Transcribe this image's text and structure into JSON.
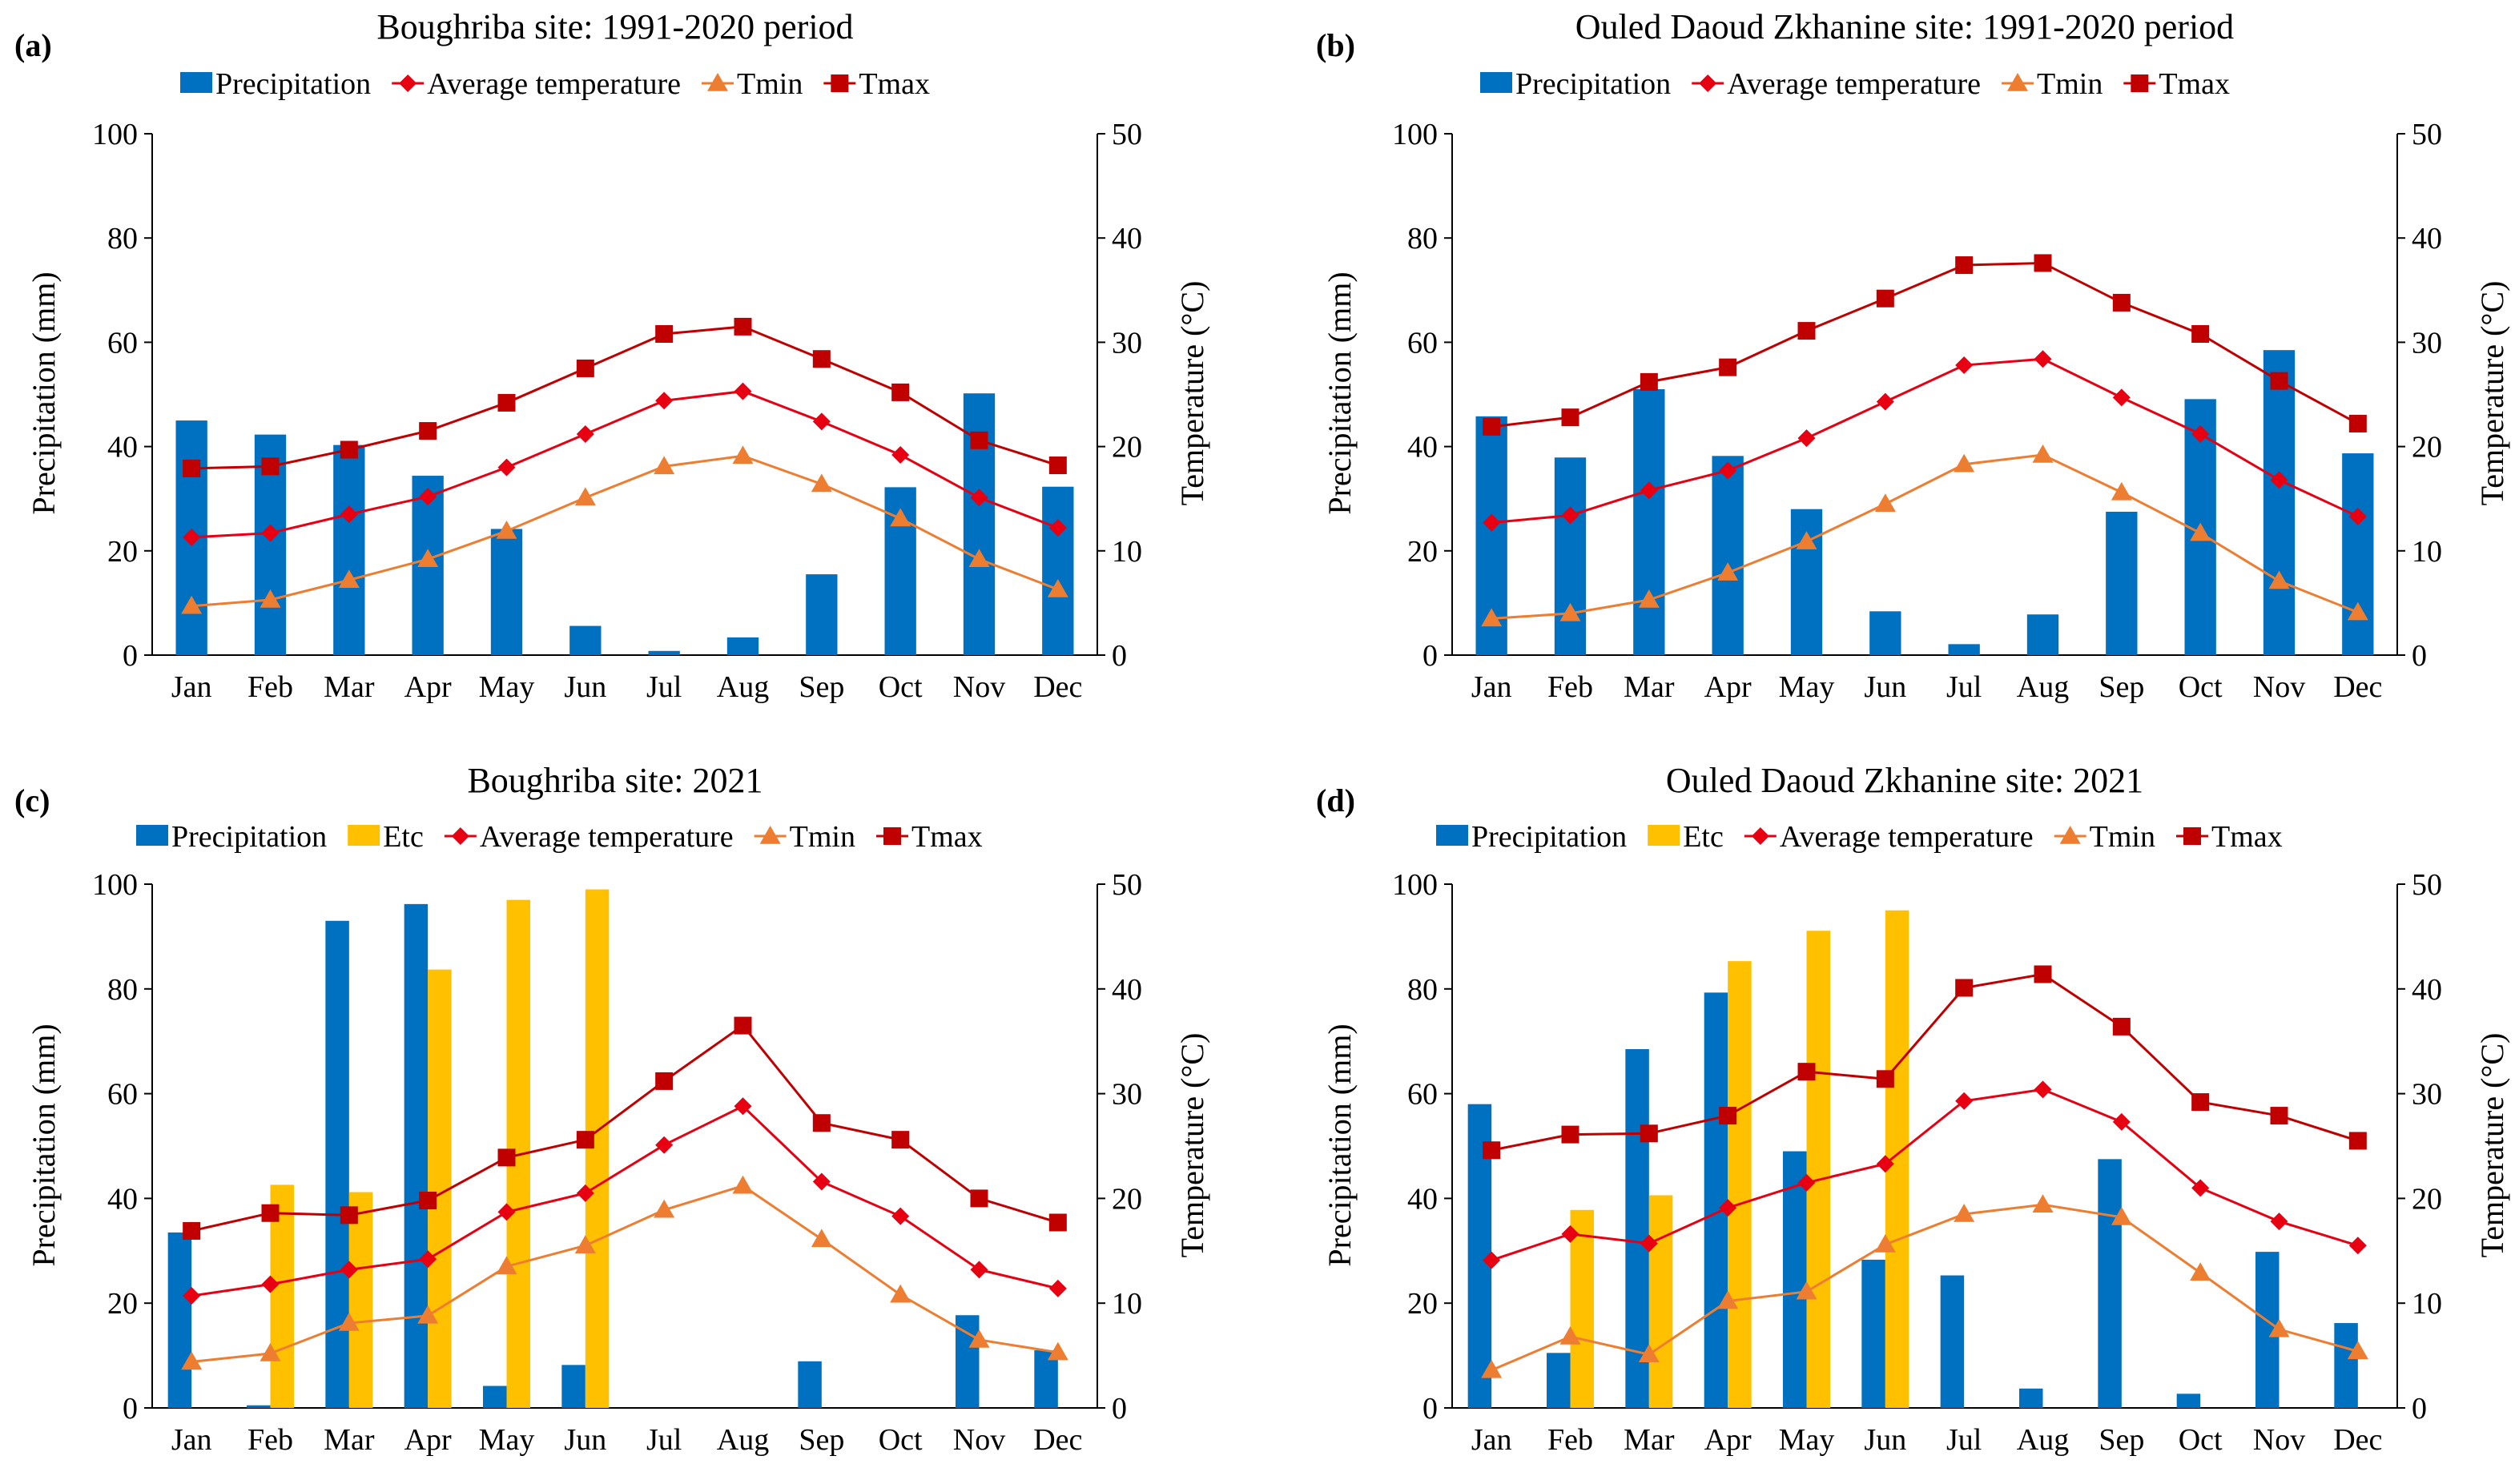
{
  "colors": {
    "precipitation": "#0070C0",
    "etc": "#FFC000",
    "average": "#E60012",
    "tmin": "#ED7D31",
    "tmax": "#C00000",
    "axis": "#000000"
  },
  "chart_data": [
    {
      "panel": "(a)",
      "title": "Boughriba site: 1991-2020 period",
      "type": "bar",
      "categories": [
        "Jan",
        "Feb",
        "Mar",
        "Apr",
        "May",
        "Jun",
        "Jul",
        "Aug",
        "Sep",
        "Oct",
        "Nov",
        "Dec"
      ],
      "ylabel": "Precipitation (mm)",
      "y2label": "Temperature (°C)",
      "ylim": [
        0,
        100
      ],
      "y2lim": [
        0,
        50
      ],
      "yticks": [
        "0",
        "20",
        "40",
        "60",
        "80",
        "100"
      ],
      "y2ticks": [
        "0",
        "10",
        "20",
        "30",
        "40",
        "50"
      ],
      "legend": [
        "Precipitation",
        "Average temperature",
        "Tmin",
        "Tmax"
      ],
      "series": [
        {
          "name": "Precipitation",
          "kind": "bar",
          "axis": "left",
          "values": [
            45,
            42.3,
            40.3,
            34.4,
            24.2,
            5.6,
            0.8,
            3.4,
            15.5,
            32.2,
            50.2,
            32.3
          ]
        },
        {
          "name": "Average temperature",
          "kind": "line",
          "marker": "diamond",
          "axis": "right",
          "values": [
            11.3,
            11.7,
            13.5,
            15.2,
            18.0,
            21.2,
            24.4,
            25.3,
            22.4,
            19.2,
            15.1,
            12.2
          ]
        },
        {
          "name": "Tmin",
          "kind": "line",
          "marker": "triangle",
          "axis": "right",
          "values": [
            4.7,
            5.3,
            7.2,
            9.2,
            11.9,
            15.1,
            18.1,
            19.1,
            16.4,
            13.1,
            9.2,
            6.3
          ]
        },
        {
          "name": "Tmax",
          "kind": "line",
          "marker": "square",
          "axis": "right",
          "values": [
            17.9,
            18.1,
            19.7,
            21.5,
            24.2,
            27.5,
            30.8,
            31.5,
            28.4,
            25.2,
            20.6,
            18.2
          ]
        }
      ]
    },
    {
      "panel": "(b)",
      "title": "Ouled Daoud Zkhanine site: 1991-2020 period",
      "type": "bar",
      "categories": [
        "Jan",
        "Feb",
        "Mar",
        "Apr",
        "May",
        "Jun",
        "Jul",
        "Aug",
        "Sep",
        "Oct",
        "Nov",
        "Dec"
      ],
      "ylabel": "Precipitation (mm)",
      "y2label": "Temperature (°C)",
      "ylim": [
        0,
        100
      ],
      "y2lim": [
        0,
        50
      ],
      "yticks": [
        "0",
        "20",
        "40",
        "60",
        "80",
        "100"
      ],
      "y2ticks": [
        "0",
        "10",
        "20",
        "30",
        "40",
        "50"
      ],
      "legend": [
        "Precipitation",
        "Average temperature",
        "Tmin",
        "Tmax"
      ],
      "series": [
        {
          "name": "Precipitation",
          "kind": "bar",
          "axis": "left",
          "values": [
            45.8,
            37.9,
            51,
            38.2,
            28,
            8.4,
            2.1,
            7.8,
            27.5,
            49.1,
            58.5,
            38.7
          ]
        },
        {
          "name": "Average temperature",
          "kind": "line",
          "marker": "diamond",
          "axis": "right",
          "values": [
            12.7,
            13.4,
            15.8,
            17.7,
            20.8,
            24.3,
            27.8,
            28.4,
            24.7,
            21.2,
            16.8,
            13.3
          ]
        },
        {
          "name": "Tmin",
          "kind": "line",
          "marker": "triangle",
          "axis": "right",
          "values": [
            3.5,
            4.0,
            5.3,
            7.9,
            10.9,
            14.5,
            18.3,
            19.2,
            15.6,
            11.7,
            7.1,
            4.1
          ]
        },
        {
          "name": "Tmax",
          "kind": "line",
          "marker": "square",
          "axis": "right",
          "values": [
            21.9,
            22.8,
            26.2,
            27.6,
            31.1,
            34.2,
            37.4,
            37.6,
            33.8,
            30.8,
            26.3,
            22.2
          ]
        }
      ]
    },
    {
      "panel": "(c)",
      "title": "Boughriba site: 2021",
      "type": "bar",
      "categories": [
        "Jan",
        "Feb",
        "Mar",
        "Apr",
        "May",
        "Jun",
        "Jul",
        "Aug",
        "Sep",
        "Oct",
        "Nov",
        "Dec"
      ],
      "ylabel": "Precipitation (mm)",
      "y2label": "Temperature (°C)",
      "ylim": [
        0,
        100
      ],
      "y2lim": [
        0,
        50
      ],
      "yticks": [
        "0",
        "20",
        "40",
        "60",
        "80",
        "100"
      ],
      "y2ticks": [
        "0",
        "10",
        "20",
        "30",
        "40",
        "50"
      ],
      "legend": [
        "Precipitation",
        "Etc",
        "Average temperature",
        "Tmin",
        "Tmax"
      ],
      "series": [
        {
          "name": "Precipitation",
          "kind": "bar",
          "axis": "left",
          "values": [
            33.5,
            0.5,
            93,
            96.2,
            4.2,
            8.2,
            0,
            0,
            8.9,
            0,
            17.7,
            11
          ]
        },
        {
          "name": "Etc",
          "kind": "bar",
          "axis": "left",
          "values": [
            0,
            42.6,
            41.2,
            83.7,
            97,
            99,
            0,
            0,
            0,
            0,
            0,
            0
          ]
        },
        {
          "name": "Average temperature",
          "kind": "line",
          "marker": "diamond",
          "axis": "right",
          "values": [
            10.7,
            11.8,
            13.2,
            14.2,
            18.7,
            20.5,
            25.1,
            28.8,
            21.6,
            18.3,
            13.2,
            11.4
          ]
        },
        {
          "name": "Tmin",
          "kind": "line",
          "marker": "triangle",
          "axis": "right",
          "values": [
            4.4,
            5.2,
            8.1,
            8.8,
            13.5,
            15.5,
            18.9,
            21.2,
            16.1,
            10.8,
            6.5,
            5.3
          ]
        },
        {
          "name": "Tmax",
          "kind": "line",
          "marker": "square",
          "axis": "right",
          "values": [
            16.9,
            18.6,
            18.4,
            19.8,
            23.9,
            25.6,
            31.2,
            36.5,
            27.2,
            25.6,
            20.0,
            17.7
          ]
        }
      ]
    },
    {
      "panel": "(d)",
      "title": "Ouled Daoud Zkhanine site: 2021",
      "type": "bar",
      "categories": [
        "Jan",
        "Feb",
        "Mar",
        "Apr",
        "May",
        "Jun",
        "Jul",
        "Aug",
        "Sep",
        "Oct",
        "Nov",
        "Dec"
      ],
      "ylabel": "Precipitation (mm)",
      "y2label": "Temperature (°C)",
      "ylim": [
        0,
        100
      ],
      "y2lim": [
        0,
        50
      ],
      "yticks": [
        "0",
        "20",
        "40",
        "60",
        "80",
        "100"
      ],
      "y2ticks": [
        "0",
        "10",
        "20",
        "30",
        "40",
        "50"
      ],
      "legend": [
        "Precipitation",
        "Etc",
        "Average temperature",
        "Tmin",
        "Tmax"
      ],
      "series": [
        {
          "name": "Precipitation",
          "kind": "bar",
          "axis": "left",
          "values": [
            58,
            10.5,
            68.5,
            79.3,
            49,
            28.3,
            25.3,
            3.7,
            47.5,
            2.7,
            29.8,
            16.2
          ]
        },
        {
          "name": "Etc",
          "kind": "bar",
          "axis": "left",
          "values": [
            0,
            37.8,
            40.6,
            85.3,
            91.1,
            95,
            0,
            0,
            0,
            0,
            0,
            0
          ]
        },
        {
          "name": "Average temperature",
          "kind": "line",
          "marker": "diamond",
          "axis": "right",
          "values": [
            14.1,
            16.6,
            15.7,
            19.1,
            21.5,
            23.3,
            29.3,
            30.4,
            27.3,
            21.0,
            17.8,
            15.5
          ]
        },
        {
          "name": "Tmin",
          "kind": "line",
          "marker": "triangle",
          "axis": "right",
          "values": [
            3.6,
            6.8,
            5.1,
            10.2,
            11.1,
            15.6,
            18.5,
            19.4,
            18.2,
            12.9,
            7.5,
            5.4
          ]
        },
        {
          "name": "Tmax",
          "kind": "line",
          "marker": "square",
          "axis": "right",
          "values": [
            24.6,
            26.1,
            26.2,
            27.9,
            32.1,
            31.4,
            40.1,
            41.4,
            36.4,
            29.2,
            27.9,
            25.5
          ]
        }
      ]
    }
  ]
}
